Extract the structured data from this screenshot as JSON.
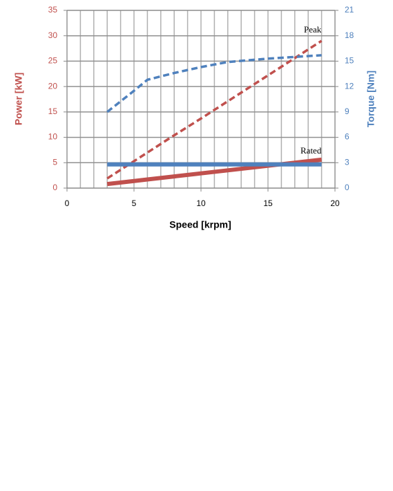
{
  "chart_data": {
    "type": "line",
    "xlabel": "Speed [krpm]",
    "ylabel": "Power [kW]",
    "y2label": "Torque [Nm]",
    "x": [
      3,
      5,
      6,
      8,
      10,
      12,
      15,
      17,
      19
    ],
    "series": [
      {
        "color": "#c0504d",
        "dashed": true,
        "axis": "y",
        "values": [
          1.9,
          5.3,
          7,
          10.4,
          13.7,
          17.1,
          22.2,
          25.6,
          29
        ]
      },
      {
        "color": "#4f81bd",
        "dashed": true,
        "axis": "y2",
        "values": [
          9,
          11.5,
          12.8,
          13.6,
          14.3,
          14.9,
          15.3,
          15.5,
          15.7
        ]
      },
      {
        "color": "#c0504d",
        "dashed": false,
        "axis": "y",
        "values": [
          0.8,
          1.4,
          1.7,
          2.3,
          2.9,
          3.5,
          4.4,
          5.0,
          5.6
        ]
      },
      {
        "color": "#4f81bd",
        "dashed": false,
        "axis": "y2",
        "values": [
          2.8,
          2.8,
          2.8,
          2.8,
          2.8,
          2.8,
          2.8,
          2.8,
          2.8
        ]
      }
    ],
    "annotations": [
      "Peak",
      "Rated"
    ],
    "xlim": [
      0,
      20
    ],
    "xticks": [
      0,
      5,
      10,
      15,
      20
    ],
    "x_minor_grid_step": 1,
    "ylim": [
      0,
      35
    ],
    "yticks": [
      0,
      5,
      10,
      15,
      20,
      25,
      30,
      35
    ],
    "y2lim": [
      0,
      21
    ],
    "y2ticks": [
      0,
      3,
      6,
      9,
      12,
      15,
      18,
      21
    ],
    "grid": true
  }
}
